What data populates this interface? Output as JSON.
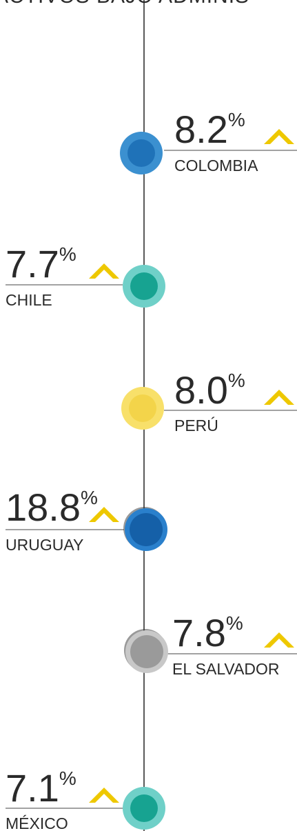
{
  "header": {
    "title": "ACTIVOS BAJO ADMINIS"
  },
  "items": [
    {
      "value": "8.2",
      "unit": "%",
      "label": "COLOMBIA"
    },
    {
      "value": "7.7",
      "unit": "%",
      "label": "CHILE"
    },
    {
      "value": "8.0",
      "unit": "%",
      "label": "PERÚ"
    },
    {
      "value": "18.8",
      "unit": "%",
      "label": "URUGUAY"
    },
    {
      "value": "7.8",
      "unit": "%",
      "label": "EL SALVADOR"
    },
    {
      "value": "7.1",
      "unit": "%",
      "label": "MÉXICO"
    }
  ]
}
